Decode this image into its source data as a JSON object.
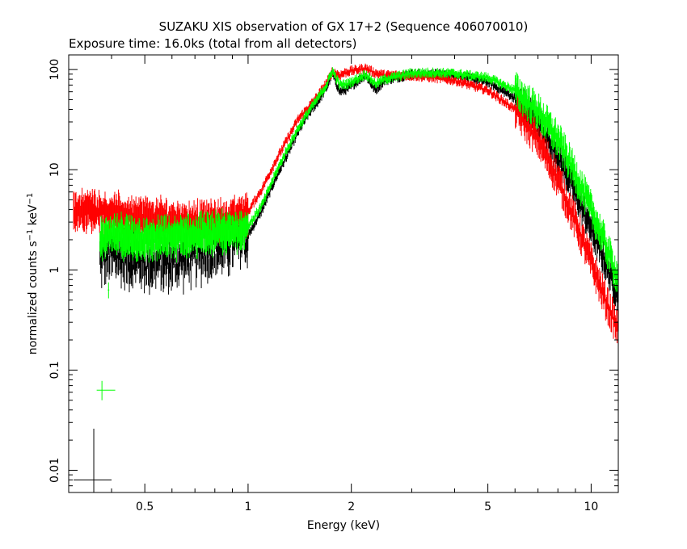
{
  "chart_data": {
    "type": "scatter",
    "title": "SUZAKU XIS observation of GX 17+2 (Sequence 406070010)",
    "subtitle": "Exposure time: 16.0ks (total from all detectors)",
    "xlabel": "Energy (keV)",
    "ylabel_main": "normalized counts s",
    "ylabel_sup1": "−1",
    "ylabel_mid": " keV",
    "ylabel_sup2": "−1",
    "x_scale": "log",
    "y_scale": "log",
    "xlim": [
      0.3,
      12
    ],
    "ylim": [
      0.006,
      140
    ],
    "x_ticks": [
      {
        "value": 0.5,
        "label": "0.5"
      },
      {
        "value": 1,
        "label": "1"
      },
      {
        "value": 2,
        "label": "2"
      },
      {
        "value": 5,
        "label": "5"
      },
      {
        "value": 10,
        "label": "10"
      }
    ],
    "y_ticks": [
      {
        "value": 0.01,
        "label": "0.01"
      },
      {
        "value": 0.1,
        "label": "0.1"
      },
      {
        "value": 1,
        "label": "1"
      },
      {
        "value": 10,
        "label": "10"
      },
      {
        "value": 100,
        "label": "100"
      }
    ],
    "grid": false,
    "legend": "none",
    "series": [
      {
        "color": "#ff0000",
        "points": [
          [
            0.31,
            3.8
          ],
          [
            0.34,
            4.0
          ],
          [
            0.37,
            3.9
          ],
          [
            0.4,
            3.6
          ],
          [
            0.45,
            3.4
          ],
          [
            0.5,
            3.3
          ],
          [
            0.6,
            3.1
          ],
          [
            0.7,
            3.0
          ],
          [
            0.8,
            3.1
          ],
          [
            0.9,
            3.2
          ],
          [
            1.0,
            3.8
          ],
          [
            1.1,
            6.5
          ],
          [
            1.2,
            12.0
          ],
          [
            1.3,
            20.0
          ],
          [
            1.4,
            32.0
          ],
          [
            1.5,
            42.0
          ],
          [
            1.6,
            55.0
          ],
          [
            1.7,
            75.0
          ],
          [
            1.76,
            95.0
          ],
          [
            1.85,
            88.0
          ],
          [
            1.95,
            95.0
          ],
          [
            2.1,
            100.0
          ],
          [
            2.2,
            103.0
          ],
          [
            2.35,
            92.0
          ],
          [
            2.5,
            88.0
          ],
          [
            3.0,
            87.0
          ],
          [
            3.5,
            83.0
          ],
          [
            4.0,
            78.0
          ],
          [
            5.0,
            62.0
          ],
          [
            6.0,
            40.0
          ],
          [
            7.0,
            20.0
          ],
          [
            8.0,
            8.0
          ],
          [
            9.0,
            3.0
          ],
          [
            10.0,
            1.2
          ],
          [
            11.0,
            0.5
          ],
          [
            12.0,
            0.25
          ]
        ]
      },
      {
        "color": "#00ff00",
        "points": [
          [
            0.37,
            2.0
          ],
          [
            0.4,
            2.2
          ],
          [
            0.45,
            2.1
          ],
          [
            0.5,
            2.0
          ],
          [
            0.6,
            2.1
          ],
          [
            0.7,
            2.2
          ],
          [
            0.8,
            2.3
          ],
          [
            0.9,
            2.4
          ],
          [
            1.0,
            2.7
          ],
          [
            1.1,
            4.5
          ],
          [
            1.2,
            9.0
          ],
          [
            1.3,
            16.0
          ],
          [
            1.4,
            26.0
          ],
          [
            1.5,
            38.0
          ],
          [
            1.6,
            52.0
          ],
          [
            1.7,
            72.0
          ],
          [
            1.76,
            98.0
          ],
          [
            1.85,
            70.0
          ],
          [
            1.95,
            72.0
          ],
          [
            2.1,
            82.0
          ],
          [
            2.2,
            90.0
          ],
          [
            2.35,
            72.0
          ],
          [
            2.5,
            80.0
          ],
          [
            3.0,
            92.0
          ],
          [
            3.5,
            93.0
          ],
          [
            4.0,
            91.0
          ],
          [
            5.0,
            83.0
          ],
          [
            6.0,
            62.0
          ],
          [
            7.0,
            38.0
          ],
          [
            8.0,
            20.0
          ],
          [
            9.0,
            9.0
          ],
          [
            10.0,
            4.0
          ],
          [
            11.0,
            1.8
          ],
          [
            12.0,
            0.8
          ]
        ]
      },
      {
        "color": "#000000",
        "points": [
          [
            0.37,
            1.3
          ],
          [
            0.4,
            1.4
          ],
          [
            0.45,
            1.3
          ],
          [
            0.5,
            1.2
          ],
          [
            0.6,
            1.2
          ],
          [
            0.7,
            1.4
          ],
          [
            0.8,
            1.6
          ],
          [
            0.9,
            1.8
          ],
          [
            1.0,
            2.2
          ],
          [
            1.1,
            4.0
          ],
          [
            1.2,
            8.0
          ],
          [
            1.3,
            14.0
          ],
          [
            1.4,
            24.0
          ],
          [
            1.5,
            36.0
          ],
          [
            1.6,
            48.0
          ],
          [
            1.7,
            68.0
          ],
          [
            1.76,
            92.0
          ],
          [
            1.85,
            60.0
          ],
          [
            1.95,
            64.0
          ],
          [
            2.1,
            78.0
          ],
          [
            2.2,
            88.0
          ],
          [
            2.35,
            62.0
          ],
          [
            2.5,
            78.0
          ],
          [
            3.0,
            90.0
          ],
          [
            3.5,
            90.0
          ],
          [
            4.0,
            88.0
          ],
          [
            5.0,
            75.0
          ],
          [
            6.0,
            52.0
          ],
          [
            7.0,
            30.0
          ],
          [
            8.0,
            14.0
          ],
          [
            9.0,
            6.0
          ],
          [
            10.0,
            2.6
          ],
          [
            11.0,
            1.2
          ],
          [
            12.0,
            0.55
          ]
        ]
      }
    ],
    "isolated_points": [
      {
        "color": "#00ff00",
        "x": 0.375,
        "x_err": [
          0.362,
          0.41
        ],
        "y": 0.063,
        "y_err": [
          0.05,
          0.078
        ]
      },
      {
        "color": "#000000",
        "x": 0.355,
        "x_err": [
          0.31,
          0.4
        ],
        "y": 0.008,
        "y_err": [
          0.006,
          0.026
        ]
      },
      {
        "color": "#00ff00",
        "x": 0.392,
        "x_err": [
          0.39,
          0.394
        ],
        "y": 0.63,
        "y_err": [
          0.52,
          0.75
        ]
      }
    ]
  }
}
